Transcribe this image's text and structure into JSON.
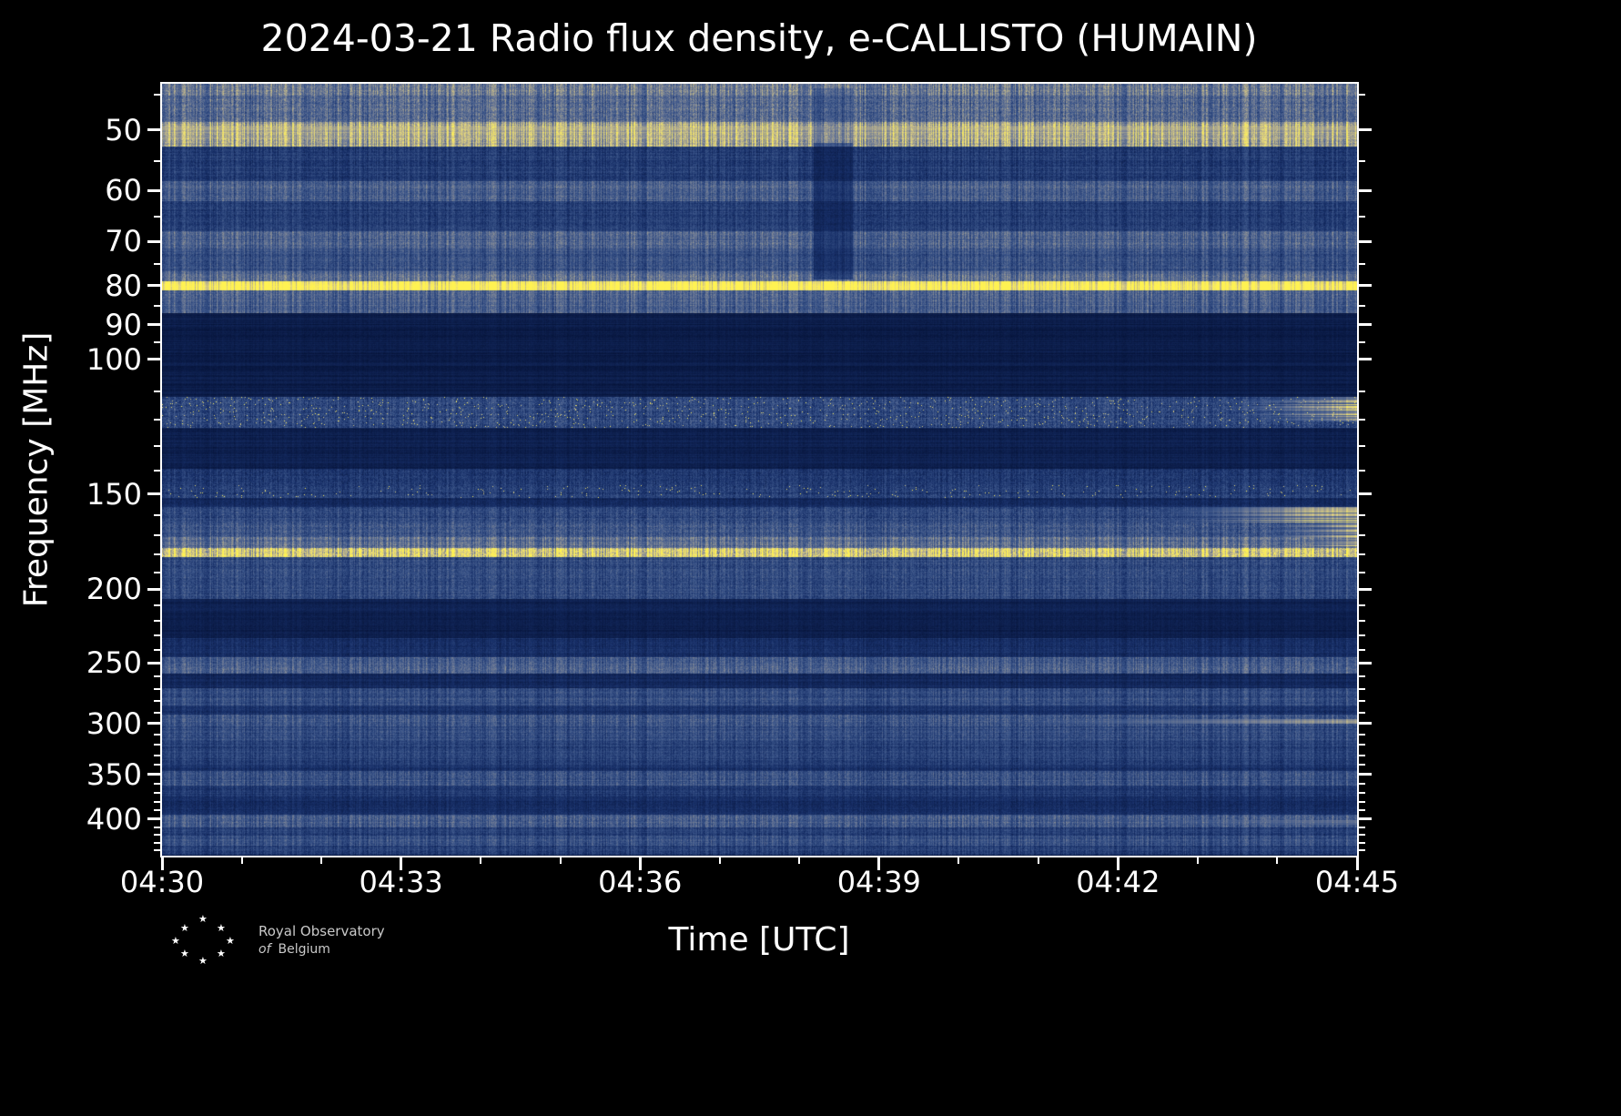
{
  "title": "2024-03-21 Radio flux density, e-CALLISTO (HUMAIN)",
  "axes": {
    "x_label": "Time [UTC]",
    "y_label": "Frequency [MHz]",
    "x_tick_labels": [
      "04:30",
      "04:33",
      "04:36",
      "04:39",
      "04:42",
      "04:45"
    ],
    "y_tick_values": [
      50,
      60,
      70,
      80,
      90,
      100,
      150,
      200,
      250,
      300,
      350,
      400
    ]
  },
  "logo": {
    "line1": "Royal Observatory",
    "line2_prefix": "of",
    "line2": "Belgium",
    "star_count": 8
  },
  "chart_data": {
    "type": "heatmap",
    "title": "2024-03-21 Radio flux density, e-CALLISTO (HUMAIN)",
    "xlabel": "Time [UTC]",
    "ylabel": "Frequency [MHz]",
    "station": "HUMAIN",
    "date": "2024-03-21",
    "x_range": [
      "04:30",
      "04:45"
    ],
    "x_major_tick_minutes": 3,
    "y_scale": "log",
    "y_range_mhz": [
      43.5,
      447
    ],
    "y_ticks_mhz": [
      50,
      60,
      70,
      80,
      90,
      100,
      150,
      200,
      250,
      300,
      350,
      400
    ],
    "y_minor_ticks_mhz": [
      45,
      55,
      65,
      75,
      85,
      95,
      110,
      120,
      130,
      140,
      160,
      170,
      180,
      190,
      210,
      220,
      230,
      240,
      260,
      270,
      280,
      290,
      310,
      320,
      330,
      340,
      360,
      370,
      380,
      390,
      410,
      420,
      430,
      440
    ],
    "colormap_stops": [
      {
        "v": 0.0,
        "c": [
          6,
          20,
          58
        ]
      },
      {
        "v": 0.22,
        "c": [
          24,
          48,
          105
        ]
      },
      {
        "v": 0.42,
        "c": [
          60,
          86,
          138
        ]
      },
      {
        "v": 0.6,
        "c": [
          112,
          124,
          150
        ]
      },
      {
        "v": 0.76,
        "c": [
          182,
          175,
          142
        ]
      },
      {
        "v": 0.9,
        "c": [
          234,
          220,
          122
        ]
      },
      {
        "v": 1.0,
        "c": [
          255,
          242,
          82
        ]
      }
    ],
    "background_level": 0.1,
    "bands": [
      {
        "f_lo": 43.5,
        "f_hi": 45.0,
        "level": 0.58,
        "jitter": 0.18
      },
      {
        "f_lo": 45.0,
        "f_hi": 48.8,
        "level": 0.5,
        "jitter": 0.2
      },
      {
        "f_lo": 48.8,
        "f_hi": 52.5,
        "level": 0.72,
        "jitter": 0.16
      },
      {
        "f_lo": 52.5,
        "f_hi": 58.3,
        "level": 0.28,
        "jitter": 0.14
      },
      {
        "f_lo": 58.3,
        "f_hi": 62.0,
        "level": 0.44,
        "jitter": 0.16
      },
      {
        "f_lo": 62.0,
        "f_hi": 67.8,
        "level": 0.28,
        "jitter": 0.14
      },
      {
        "f_lo": 67.8,
        "f_hi": 71.5,
        "level": 0.46,
        "jitter": 0.16
      },
      {
        "f_lo": 71.5,
        "f_hi": 76.5,
        "level": 0.38,
        "jitter": 0.15
      },
      {
        "f_lo": 76.5,
        "f_hi": 79.0,
        "level": 0.52,
        "jitter": 0.15
      },
      {
        "f_lo": 79.0,
        "f_hi": 81.2,
        "level": 1.02,
        "jitter": 0.06
      },
      {
        "f_lo": 81.2,
        "f_hi": 87.0,
        "level": 0.46,
        "jitter": 0.15
      },
      {
        "f_lo": 87.0,
        "f_hi": 112.0,
        "level": 0.07,
        "jitter": 0.05
      },
      {
        "f_lo": 112.0,
        "f_hi": 123.0,
        "level": 0.33,
        "jitter": 0.22,
        "speckle": 0.02
      },
      {
        "f_lo": 123.0,
        "f_hi": 139.0,
        "level": 0.1,
        "jitter": 0.06
      },
      {
        "f_lo": 139.0,
        "f_hi": 146.0,
        "level": 0.25,
        "jitter": 0.16
      },
      {
        "f_lo": 146.0,
        "f_hi": 152.0,
        "level": 0.28,
        "jitter": 0.18,
        "speckle": 0.012
      },
      {
        "f_lo": 152.0,
        "f_hi": 156.0,
        "level": 0.17,
        "jitter": 0.1
      },
      {
        "f_lo": 156.0,
        "f_hi": 163.5,
        "level": 0.33,
        "jitter": 0.18
      },
      {
        "f_lo": 163.5,
        "f_hi": 171.0,
        "level": 0.4,
        "jitter": 0.18
      },
      {
        "f_lo": 171.0,
        "f_hi": 176.5,
        "level": 0.52,
        "jitter": 0.16
      },
      {
        "f_lo": 176.5,
        "f_hi": 181.5,
        "level": 0.8,
        "jitter": 0.22,
        "speckle": 0.06
      },
      {
        "f_lo": 181.5,
        "f_hi": 206.0,
        "level": 0.34,
        "jitter": 0.16
      },
      {
        "f_lo": 206.0,
        "f_hi": 232.0,
        "level": 0.1,
        "jitter": 0.06
      },
      {
        "f_lo": 232.0,
        "f_hi": 246.0,
        "level": 0.2,
        "jitter": 0.1
      },
      {
        "f_lo": 246.0,
        "f_hi": 258.0,
        "level": 0.44,
        "jitter": 0.16
      },
      {
        "f_lo": 258.0,
        "f_hi": 270.0,
        "level": 0.16,
        "jitter": 0.08
      },
      {
        "f_lo": 270.0,
        "f_hi": 284.0,
        "level": 0.36,
        "jitter": 0.14
      },
      {
        "f_lo": 284.0,
        "f_hi": 292.0,
        "level": 0.22,
        "jitter": 0.1
      },
      {
        "f_lo": 292.0,
        "f_hi": 303.0,
        "level": 0.42,
        "jitter": 0.16
      },
      {
        "f_lo": 303.0,
        "f_hi": 316.0,
        "level": 0.36,
        "jitter": 0.14
      },
      {
        "f_lo": 316.0,
        "f_hi": 340.0,
        "level": 0.3,
        "jitter": 0.13
      },
      {
        "f_lo": 340.0,
        "f_hi": 347.0,
        "level": 0.22,
        "jitter": 0.1
      },
      {
        "f_lo": 347.0,
        "f_hi": 362.0,
        "level": 0.4,
        "jitter": 0.15
      },
      {
        "f_lo": 362.0,
        "f_hi": 374.0,
        "level": 0.26,
        "jitter": 0.12
      },
      {
        "f_lo": 374.0,
        "f_hi": 396.0,
        "level": 0.18,
        "jitter": 0.1
      },
      {
        "f_lo": 396.0,
        "f_hi": 411.0,
        "level": 0.44,
        "jitter": 0.16
      },
      {
        "f_lo": 411.0,
        "f_hi": 421.0,
        "level": 0.3,
        "jitter": 0.13
      },
      {
        "f_lo": 421.0,
        "f_hi": 434.0,
        "level": 0.38,
        "jitter": 0.14
      },
      {
        "f_lo": 434.0,
        "f_hi": 447.0,
        "level": 0.3,
        "jitter": 0.14
      }
    ],
    "features": [
      {
        "type": "bright_line",
        "f_lo": 49.3,
        "f_hi": 51.3,
        "x0": 0.0,
        "x1": 1.0,
        "max": 0.82,
        "pow": 0
      },
      {
        "type": "bright_ramp",
        "f_lo": 112.0,
        "f_hi": 120.5,
        "x0": 0.72,
        "x1": 1.0,
        "max": 1.0,
        "pow": 2.2
      },
      {
        "type": "bright_ramp",
        "f_lo": 156.0,
        "f_hi": 163.5,
        "x0": 0.68,
        "x1": 0.97,
        "max": 1.0,
        "pow": 1.6
      },
      {
        "type": "bright_ramp",
        "f_lo": 163.5,
        "f_hi": 176.0,
        "x0": 0.78,
        "x1": 1.0,
        "max": 0.95,
        "pow": 2.0
      },
      {
        "type": "bright_line",
        "f_lo": 296.0,
        "f_hi": 300.5,
        "x0": 0.52,
        "x1": 1.0,
        "max": 0.8,
        "pow": 0.8
      },
      {
        "type": "bright_line",
        "f_lo": 402.0,
        "f_hi": 408.0,
        "x0": 0.6,
        "x1": 1.0,
        "max": 0.62,
        "pow": 0.6
      },
      {
        "type": "dark_patch",
        "f_lo": 52.0,
        "f_hi": 78.5,
        "x0": 0.545,
        "x1": 0.578,
        "mult": 0.55
      },
      {
        "type": "dark_patch",
        "f_lo": 44.0,
        "f_hi": 52.0,
        "x0": 0.545,
        "x1": 0.578,
        "mult": 0.82
      }
    ]
  }
}
